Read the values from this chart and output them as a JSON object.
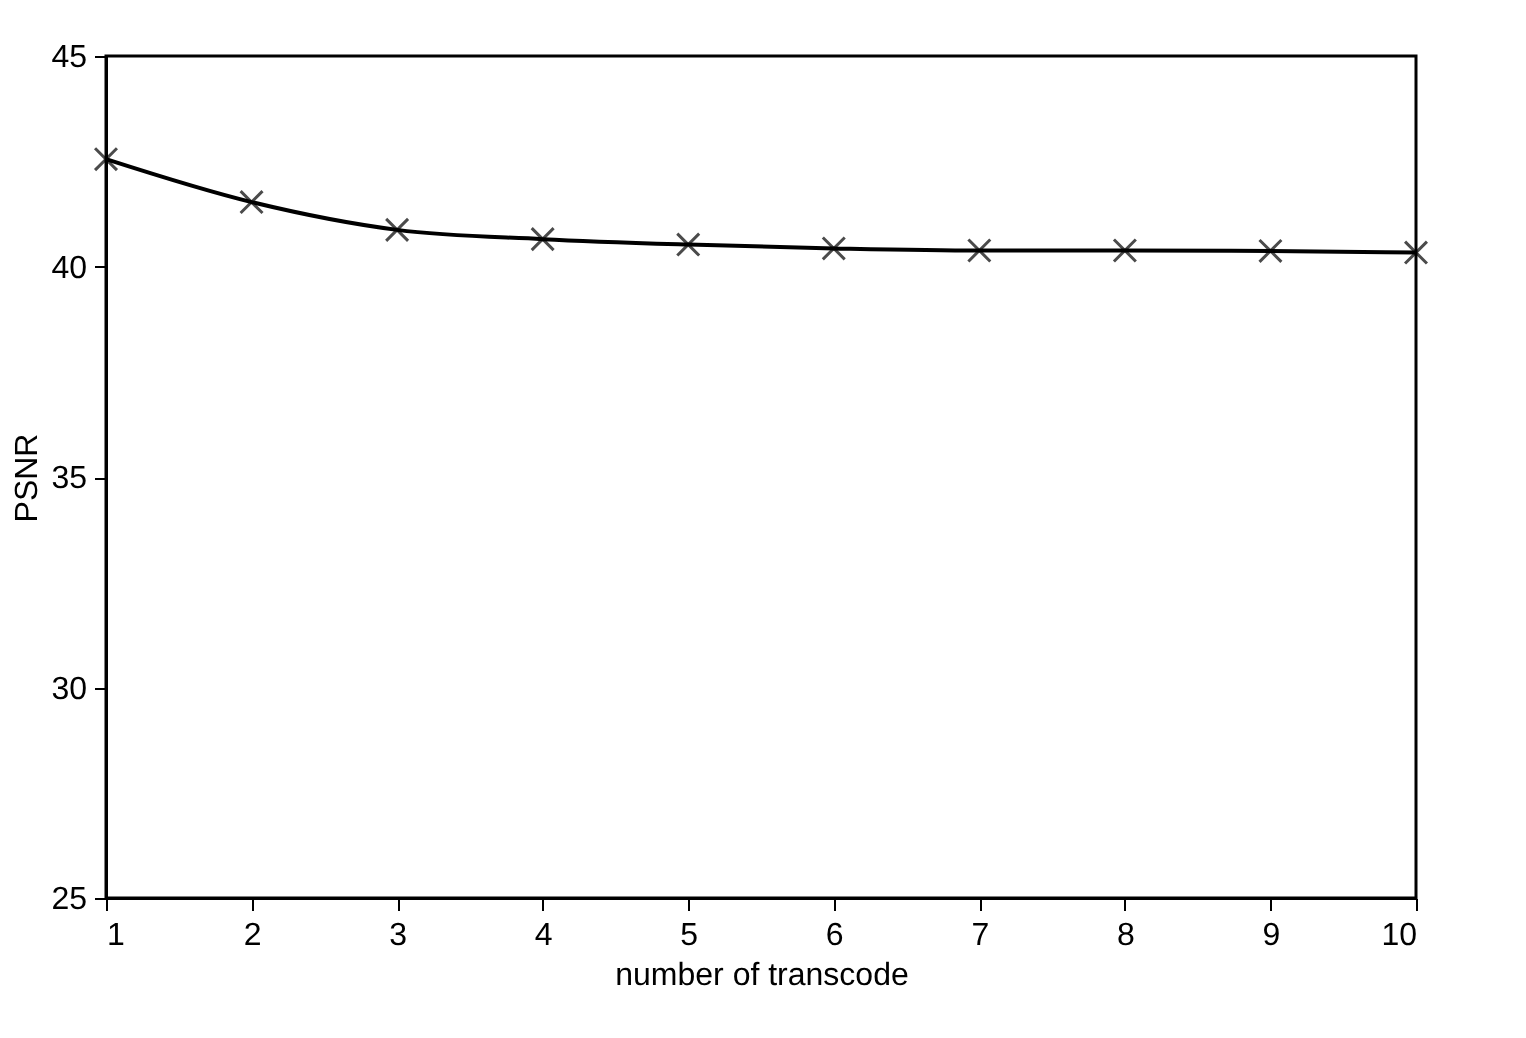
{
  "chart_data": {
    "type": "line",
    "xlabel": "number of transcode",
    "ylabel": "PSNR",
    "x": [
      1,
      2,
      3,
      4,
      5,
      6,
      7,
      8,
      9,
      10
    ],
    "series": [
      {
        "color": "#000000",
        "values": [
          42.55,
          41.53,
          40.87,
          40.65,
          40.52,
          40.43,
          40.38,
          40.38,
          40.37,
          40.33
        ]
      }
    ],
    "xlim": [
      1,
      10
    ],
    "xticks": [
      1,
      2,
      3,
      4,
      5,
      6,
      7,
      8,
      9,
      10
    ],
    "ylim": [
      25,
      45
    ],
    "yticks": [
      25,
      30,
      35,
      40,
      45
    ],
    "marker": "cross",
    "line_style": "solid",
    "grid": false,
    "legend": false
  }
}
